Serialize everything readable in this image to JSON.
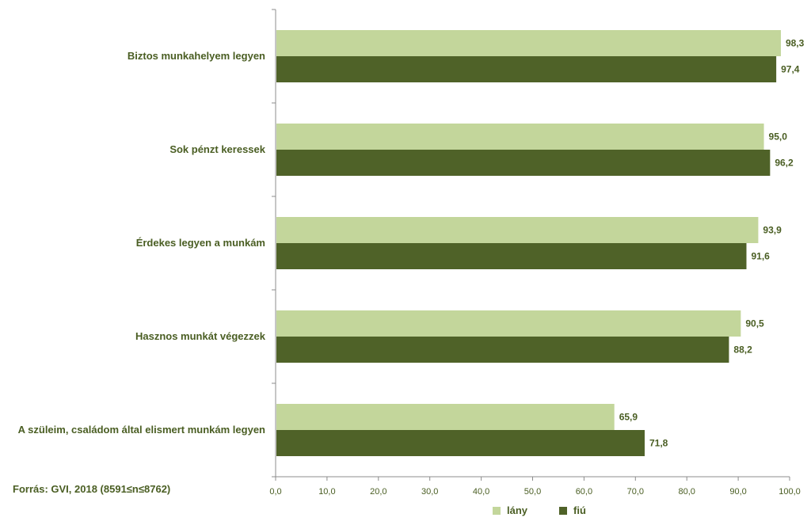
{
  "chart_data": {
    "type": "bar",
    "orientation": "horizontal",
    "categories": [
      "Biztos munkahelyem legyen",
      "Sok pénzt keressek",
      "Érdekes legyen a munkám",
      "Hasznos munkát végezzek",
      "A szüleim, családom által elismert munkám legyen"
    ],
    "series": [
      {
        "name": "lány",
        "color": "#c3d69b",
        "values": [
          98.3,
          95.0,
          93.9,
          90.5,
          65.9
        ]
      },
      {
        "name": "fiú",
        "color": "#4f6228",
        "values": [
          97.4,
          96.2,
          91.6,
          88.2,
          71.8
        ]
      }
    ],
    "data_labels": [
      [
        "98,3",
        "95,0",
        "93,9",
        "90,5",
        "65,9"
      ],
      [
        "97,4",
        "96,2",
        "91,6",
        "88,2",
        "71,8"
      ]
    ],
    "xlim": [
      0,
      100
    ],
    "xticks": [
      "0,0",
      "10,0",
      "20,0",
      "30,0",
      "40,0",
      "50,0",
      "60,0",
      "70,0",
      "80,0",
      "90,0",
      "100,0"
    ],
    "grid": false,
    "legend_position": "bottom"
  },
  "source": "Forrás: GVI, 2018 (8591≤n≤8762)"
}
